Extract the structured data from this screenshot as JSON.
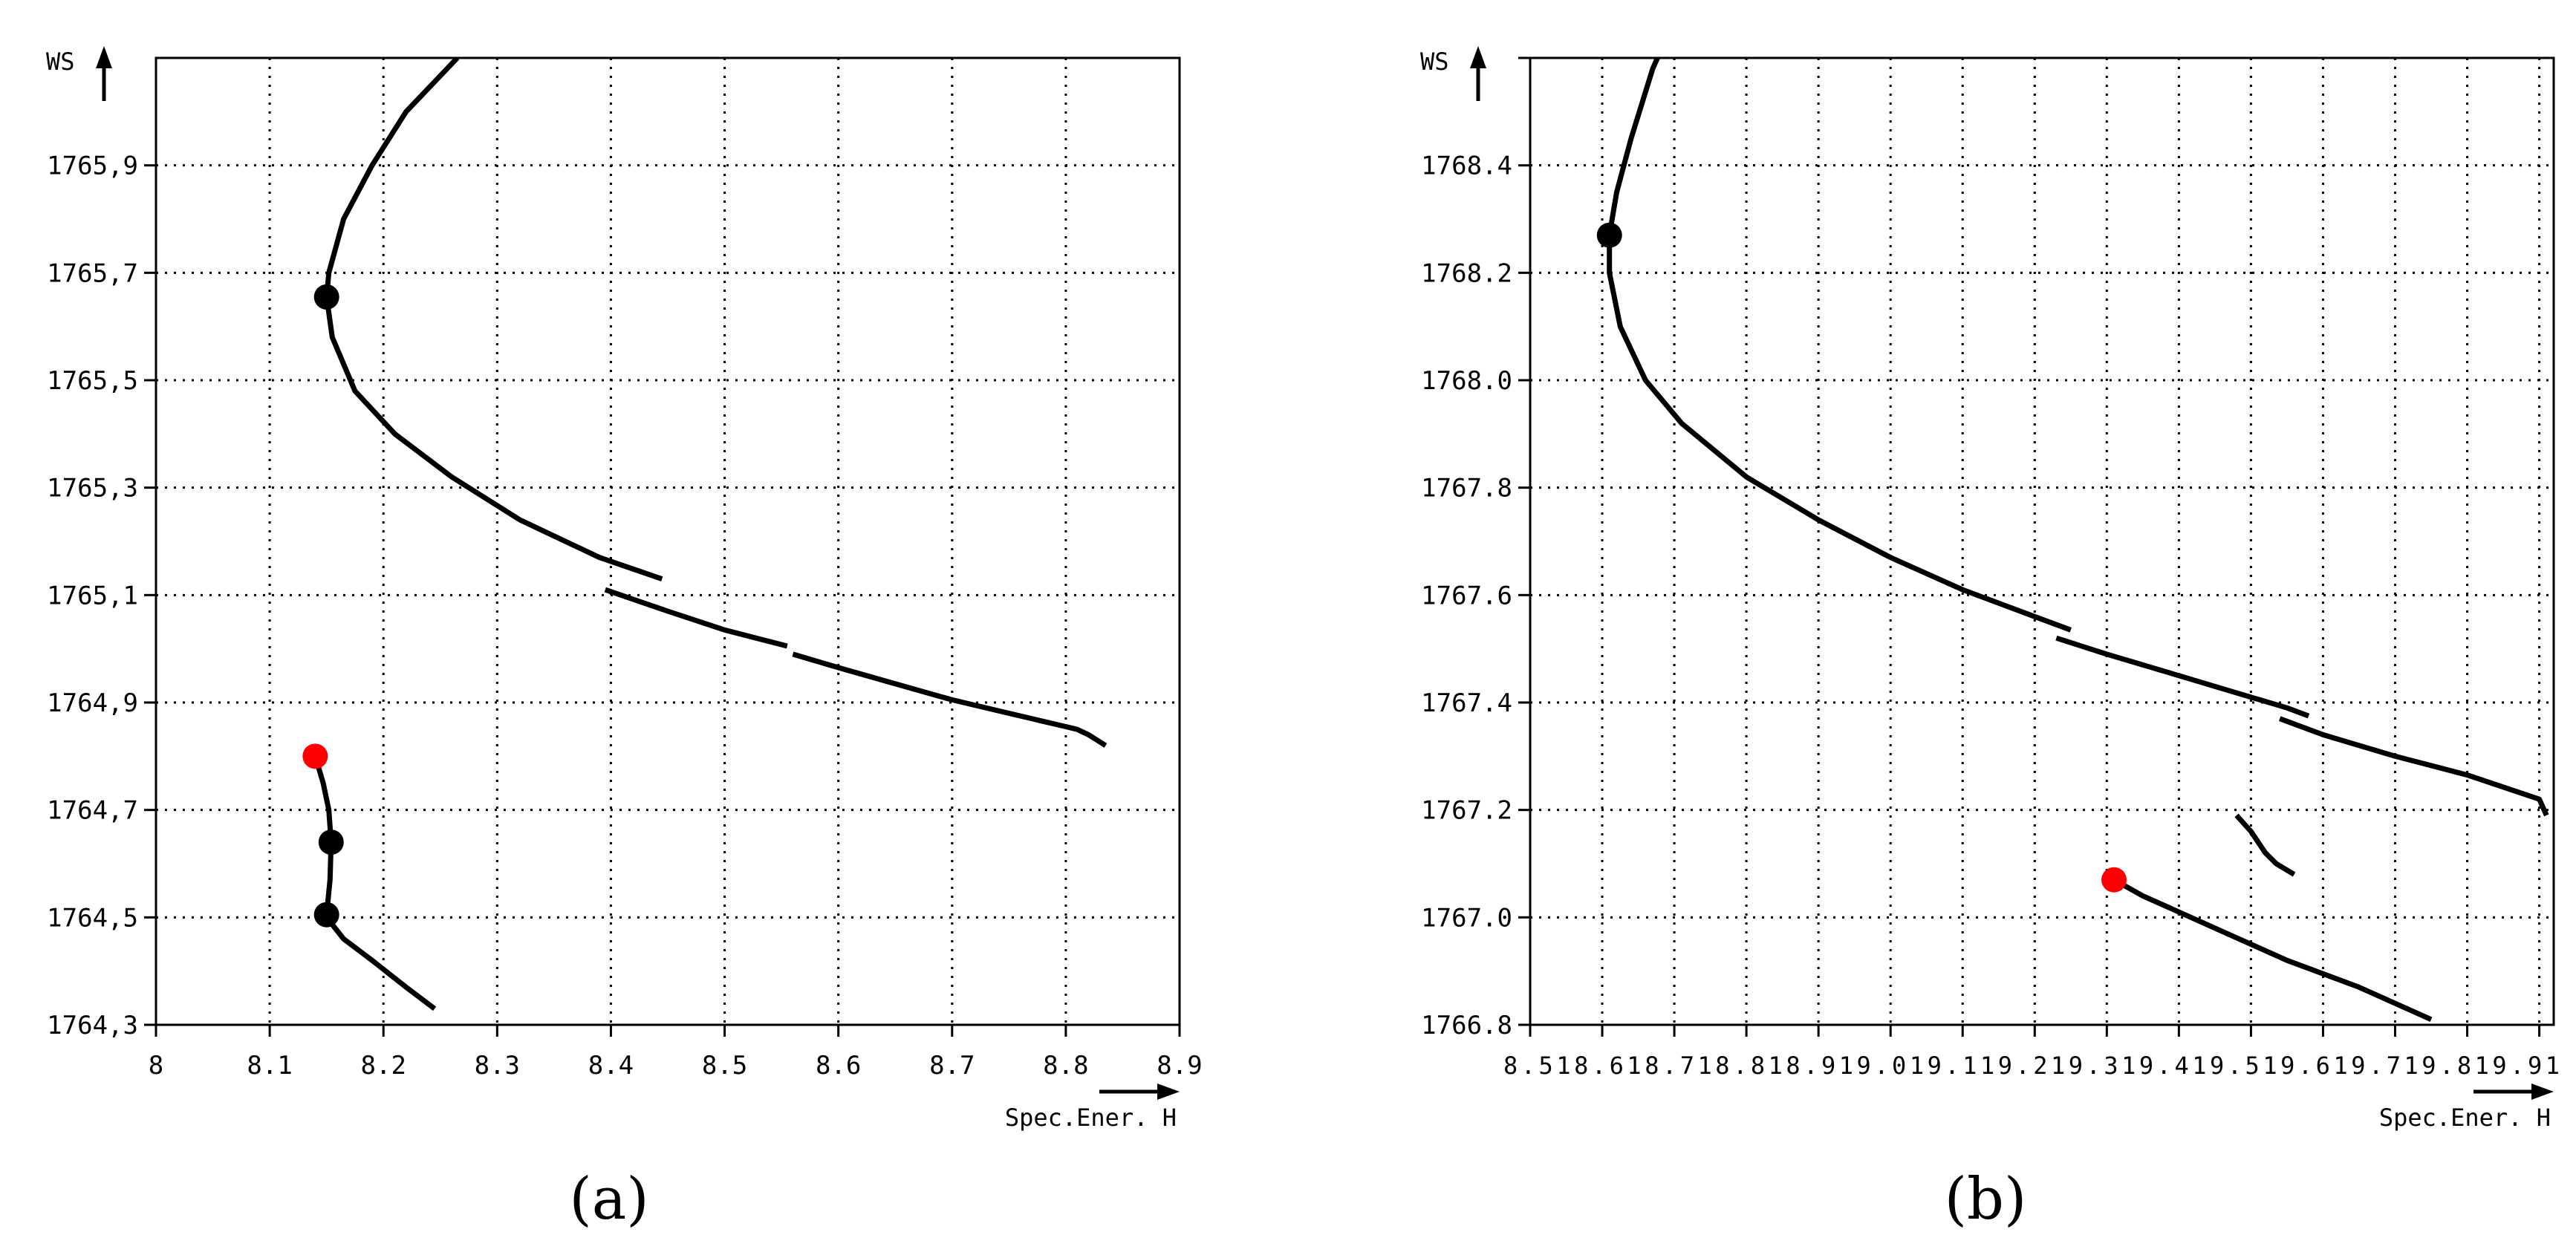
{
  "chart_data": [
    {
      "type": "line",
      "caption": "(a)",
      "xlabel": "Spec.Ener. H",
      "ylabel": "WS",
      "xlim": [
        8.0,
        8.9
      ],
      "ylim": [
        1764.3,
        1766.1
      ],
      "grid": true,
      "x_ticks": [
        {
          "v": 8.0,
          "label": "8"
        },
        {
          "v": 8.1,
          "label": "8.1"
        },
        {
          "v": 8.2,
          "label": "8.2"
        },
        {
          "v": 8.3,
          "label": "8.3"
        },
        {
          "v": 8.4,
          "label": "8.4"
        },
        {
          "v": 8.5,
          "label": "8.5"
        },
        {
          "v": 8.6,
          "label": "8.6"
        },
        {
          "v": 8.7,
          "label": "8.7"
        },
        {
          "v": 8.8,
          "label": "8.8"
        },
        {
          "v": 8.9,
          "label": "8.9"
        }
      ],
      "y_ticks": [
        {
          "v": 1764.3,
          "label": "1764,3"
        },
        {
          "v": 1764.5,
          "label": "1764,5"
        },
        {
          "v": 1764.7,
          "label": "1764,7"
        },
        {
          "v": 1764.9,
          "label": "1764,9"
        },
        {
          "v": 1765.1,
          "label": "1765,1"
        },
        {
          "v": 1765.3,
          "label": "1765,3"
        },
        {
          "v": 1765.5,
          "label": "1765,5"
        },
        {
          "v": 1765.7,
          "label": "1765,7"
        },
        {
          "v": 1765.9,
          "label": "1765,9"
        }
      ],
      "series": [
        {
          "points": [
            [
              8.265,
              1766.1
            ],
            [
              8.22,
              1766.0
            ],
            [
              8.19,
              1765.9
            ],
            [
              8.165,
              1765.8
            ],
            [
              8.152,
              1765.7
            ],
            [
              8.15,
              1765.655
            ],
            [
              8.155,
              1765.58
            ],
            [
              8.175,
              1765.48
            ],
            [
              8.21,
              1765.4
            ],
            [
              8.26,
              1765.32
            ],
            [
              8.32,
              1765.24
            ],
            [
              8.39,
              1765.17
            ],
            [
              8.445,
              1765.13
            ]
          ]
        },
        {
          "points": [
            [
              8.395,
              1765.11
            ],
            [
              8.45,
              1765.07
            ],
            [
              8.5,
              1765.035
            ],
            [
              8.555,
              1765.005
            ]
          ]
        },
        {
          "points": [
            [
              8.56,
              1764.99
            ],
            [
              8.6,
              1764.965
            ],
            [
              8.65,
              1764.935
            ],
            [
              8.7,
              1764.905
            ],
            [
              8.75,
              1764.88
            ],
            [
              8.8,
              1764.855
            ],
            [
              8.81,
              1764.85
            ],
            [
              8.82,
              1764.84
            ],
            [
              8.835,
              1764.82
            ]
          ]
        },
        {
          "points": [
            [
              8.14,
              1764.8
            ],
            [
              8.147,
              1764.75
            ],
            [
              8.152,
              1764.7
            ],
            [
              8.154,
              1764.64
            ],
            [
              8.153,
              1764.57
            ],
            [
              8.15,
              1764.505
            ]
          ]
        },
        {
          "points": [
            [
              8.15,
              1764.5
            ],
            [
              8.165,
              1764.46
            ],
            [
              8.19,
              1764.42
            ],
            [
              8.22,
              1764.37
            ],
            [
              8.245,
              1764.33
            ]
          ]
        }
      ],
      "markers": [
        {
          "x": 8.15,
          "y": 1765.655,
          "color": "#000000"
        },
        {
          "x": 8.14,
          "y": 1764.8,
          "color": "#ff0000"
        },
        {
          "x": 8.154,
          "y": 1764.64,
          "color": "#000000"
        },
        {
          "x": 8.15,
          "y": 1764.505,
          "color": "#000000"
        }
      ]
    },
    {
      "type": "line",
      "caption": "(b)",
      "xlabel": "Spec.Ener. H",
      "ylabel": "WS",
      "xlim": [
        8.5,
        9.92
      ],
      "ylim": [
        1766.8,
        1768.6
      ],
      "grid": true,
      "x_tick_labels_text": "8.518.618.718.818.919.019.119.219.319.419.519.619.719.819.91",
      "x_ticks": [
        {
          "v": 8.5
        },
        {
          "v": 8.6
        },
        {
          "v": 8.7
        },
        {
          "v": 8.8
        },
        {
          "v": 8.9
        },
        {
          "v": 9.0
        },
        {
          "v": 9.1
        },
        {
          "v": 9.2
        },
        {
          "v": 9.3
        },
        {
          "v": 9.4
        },
        {
          "v": 9.5
        },
        {
          "v": 9.6
        },
        {
          "v": 9.7
        },
        {
          "v": 9.8
        },
        {
          "v": 9.9
        }
      ],
      "y_ticks": [
        {
          "v": 1766.8,
          "label": "1766.8"
        },
        {
          "v": 1767.0,
          "label": "1767.0"
        },
        {
          "v": 1767.2,
          "label": "1767.2"
        },
        {
          "v": 1767.4,
          "label": "1767.4"
        },
        {
          "v": 1767.6,
          "label": "1767.6"
        },
        {
          "v": 1767.8,
          "label": "1767.8"
        },
        {
          "v": 1768.0,
          "label": "1768.0"
        },
        {
          "v": 1768.2,
          "label": "1768.2"
        },
        {
          "v": 1768.4,
          "label": "1768.4"
        },
        {
          "v": 1768.6,
          "label": ""
        }
      ],
      "series": [
        {
          "points": [
            [
              8.71,
              1768.7
            ],
            [
              8.67,
              1768.58
            ],
            [
              8.64,
              1768.45
            ],
            [
              8.62,
              1768.35
            ],
            [
              8.61,
              1768.27
            ],
            [
              8.61,
              1768.2
            ],
            [
              8.625,
              1768.1
            ],
            [
              8.66,
              1768.0
            ],
            [
              8.71,
              1767.92
            ],
            [
              8.8,
              1767.82
            ],
            [
              8.9,
              1767.74
            ],
            [
              9.0,
              1767.67
            ],
            [
              9.1,
              1767.61
            ],
            [
              9.2,
              1767.56
            ],
            [
              9.25,
              1767.535
            ]
          ]
        },
        {
          "points": [
            [
              9.23,
              1767.52
            ],
            [
              9.3,
              1767.49
            ],
            [
              9.4,
              1767.45
            ],
            [
              9.5,
              1767.41
            ],
            [
              9.55,
              1767.39
            ],
            [
              9.58,
              1767.375
            ]
          ]
        },
        {
          "points": [
            [
              9.54,
              1767.37
            ],
            [
              9.6,
              1767.34
            ],
            [
              9.7,
              1767.3
            ],
            [
              9.8,
              1767.265
            ],
            [
              9.9,
              1767.22
            ],
            [
              9.91,
              1767.19
            ]
          ]
        },
        {
          "points": [
            [
              9.48,
              1767.19
            ],
            [
              9.5,
              1767.16
            ],
            [
              9.52,
              1767.12
            ],
            [
              9.535,
              1767.1
            ],
            [
              9.56,
              1767.08
            ]
          ]
        },
        {
          "points": [
            [
              9.31,
              1767.07
            ],
            [
              9.35,
              1767.04
            ],
            [
              9.45,
              1766.98
            ],
            [
              9.55,
              1766.92
            ],
            [
              9.65,
              1766.87
            ],
            [
              9.75,
              1766.81
            ]
          ]
        }
      ],
      "markers": [
        {
          "x": 8.61,
          "y": 1768.27,
          "color": "#000000"
        },
        {
          "x": 9.31,
          "y": 1767.07,
          "color": "#ff0000"
        }
      ]
    }
  ]
}
